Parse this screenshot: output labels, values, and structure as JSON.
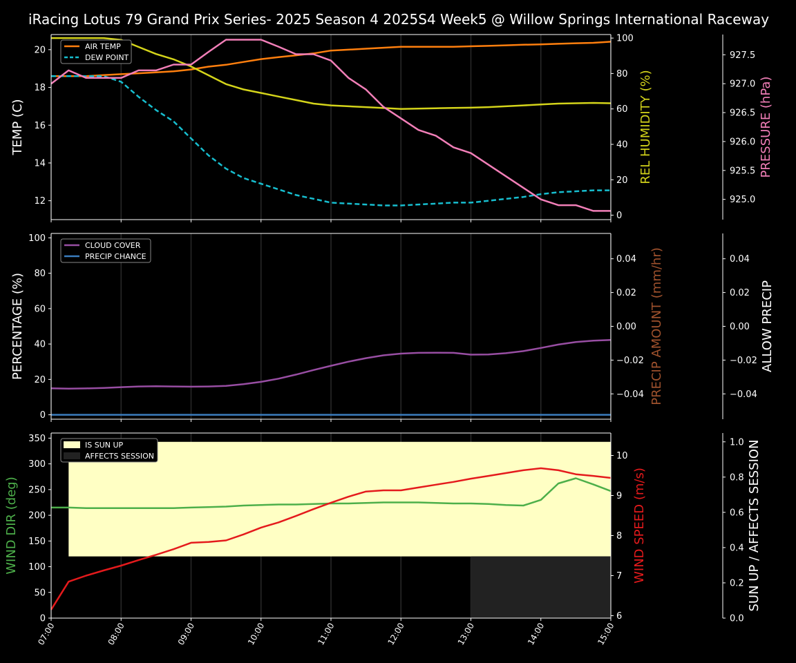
{
  "title": "iRacing Lotus 79 Grand Prix Series- 2025 Season 4 2025S4 Week5 @ Willow Springs International Raceway",
  "colors": {
    "background": "#000000",
    "axis": "#ffffff",
    "air_temp": "#ff7f0e",
    "dew_point": "#17becf",
    "humidity": "#d4d41a",
    "pressure": "#f27fb8",
    "cloud": "#984ea3",
    "precip": "#3b7dbf",
    "precip_amount_label": "#a0522d",
    "wind_dir": "#4daf4a",
    "wind_speed": "#e41a1c",
    "sun_up": "#ffffc4",
    "affects_session": "#222222",
    "grid": "#2a2a2a"
  },
  "x_ticks": [
    "07:00",
    "08:00",
    "09:00",
    "10:00",
    "11:00",
    "12:00",
    "13:00",
    "14:00",
    "15:00"
  ],
  "chart_data": [
    {
      "type": "line",
      "panel": "top",
      "x": [
        7,
        7.25,
        7.5,
        7.75,
        8,
        8.25,
        8.5,
        8.75,
        9,
        9.25,
        9.5,
        9.75,
        10,
        10.25,
        10.5,
        10.75,
        11,
        11.25,
        11.5,
        11.75,
        12,
        12.25,
        12.5,
        12.75,
        13,
        13.25,
        13.5,
        13.75,
        14,
        14.25,
        14.5,
        14.75,
        15
      ],
      "series": [
        {
          "name": "AIR TEMP",
          "axis": "left",
          "values": [
            18.6,
            18.6,
            18.6,
            18.65,
            18.7,
            18.75,
            18.8,
            18.85,
            18.95,
            19.1,
            19.2,
            19.35,
            19.5,
            19.6,
            19.7,
            19.8,
            19.95,
            20.0,
            20.05,
            20.1,
            20.15,
            20.15,
            20.15,
            20.15,
            20.18,
            20.2,
            20.23,
            20.26,
            20.28,
            20.31,
            20.34,
            20.36,
            20.42
          ]
        },
        {
          "name": "DEW POINT",
          "axis": "left",
          "dashed": true,
          "values": [
            18.6,
            18.6,
            18.6,
            18.6,
            18.3,
            17.5,
            16.8,
            16.2,
            15.3,
            14.4,
            13.7,
            13.2,
            12.9,
            12.6,
            12.3,
            12.1,
            11.9,
            11.85,
            11.8,
            11.75,
            11.75,
            11.8,
            11.85,
            11.9,
            11.9,
            12.0,
            12.1,
            12.2,
            12.35,
            12.45,
            12.5,
            12.55,
            12.55
          ]
        },
        {
          "name": "REL HUMIDITY",
          "axis": "right1",
          "values": [
            100,
            100,
            100,
            100,
            99,
            95,
            91,
            88,
            84,
            79,
            74,
            71,
            69,
            67,
            65,
            63,
            62,
            61.5,
            61,
            60.5,
            60,
            60.2,
            60.4,
            60.6,
            60.7,
            61,
            61.5,
            62,
            62.5,
            63,
            63.2,
            63.4,
            63.2
          ]
        },
        {
          "name": "PRESSURE",
          "axis": "right2",
          "values": [
            927.0,
            927.23,
            927.1,
            927.1,
            927.1,
            927.23,
            927.23,
            927.33,
            927.33,
            927.55,
            927.76,
            927.76,
            927.76,
            927.64,
            927.51,
            927.51,
            927.4,
            927.1,
            926.9,
            926.6,
            926.4,
            926.2,
            926.1,
            925.9,
            925.8,
            925.6,
            925.4,
            925.2,
            925.0,
            924.9,
            924.9,
            924.8,
            924.8
          ]
        }
      ],
      "ylabel_left": "TEMP (C)",
      "ylabel_right1": "REL HUMIDITY (%)",
      "ylabel_right2": "PRESSURE (hPa)",
      "ylim_left": [
        11.0,
        20.8
      ],
      "ylim_right1": [
        -2.5,
        102
      ],
      "ylim_right2": [
        924.65,
        927.85
      ],
      "yticks_left": [
        "12",
        "14",
        "16",
        "18",
        "20"
      ],
      "yticks_right1": [
        "0",
        "20",
        "40",
        "60",
        "80",
        "100"
      ],
      "yticks_right2": [
        "925.0",
        "925.5",
        "926.0",
        "926.5",
        "927.0",
        "927.5"
      ],
      "legend": [
        "AIR TEMP",
        "DEW POINT"
      ],
      "legend_position": "upper-left"
    },
    {
      "type": "line",
      "panel": "middle",
      "x": [
        7,
        7.25,
        7.5,
        7.75,
        8,
        8.25,
        8.5,
        8.75,
        9,
        9.25,
        9.5,
        9.75,
        10,
        10.25,
        10.5,
        10.75,
        11,
        11.25,
        11.5,
        11.75,
        12,
        12.25,
        12.5,
        12.75,
        13,
        13.25,
        13.5,
        13.75,
        14,
        14.25,
        14.5,
        14.75,
        15
      ],
      "series": [
        {
          "name": "CLOUD COVER",
          "axis": "left",
          "values": [
            15,
            14.8,
            14.9,
            15.2,
            15.6,
            16,
            16.1,
            16,
            15.9,
            16,
            16.3,
            17.3,
            18.6,
            20.4,
            22.7,
            25.3,
            27.7,
            30,
            32,
            33.6,
            34.6,
            35,
            35.1,
            35,
            34,
            34.1,
            34.8,
            36,
            37.8,
            39.7,
            41.1,
            41.9,
            42.3
          ]
        },
        {
          "name": "PRECIP CHANCE",
          "axis": "left",
          "values": [
            0,
            0,
            0,
            0,
            0,
            0,
            0,
            0,
            0,
            0,
            0,
            0,
            0,
            0,
            0,
            0,
            0,
            0,
            0,
            0,
            0,
            0,
            0,
            0,
            0,
            0,
            0,
            0,
            0,
            0,
            0,
            0,
            0
          ]
        }
      ],
      "ylabel_left": "PERCENTAGE (%)",
      "ylabel_right1": "PRECIP AMOUNT (mm/hr)",
      "ylabel_right2": "ALLOW PRECIP",
      "ylim_left": [
        -2.5,
        102.5
      ],
      "ylim_right1": [
        -0.055,
        0.055
      ],
      "ylim_right2": [
        -0.055,
        0.055
      ],
      "yticks_left": [
        "0",
        "20",
        "40",
        "60",
        "80",
        "100"
      ],
      "yticks_right1": [
        "−0.04",
        "−0.02",
        "0.00",
        "0.02",
        "0.04"
      ],
      "yticks_right2": [
        "−0.04",
        "−0.02",
        "0.00",
        "0.02",
        "0.04"
      ],
      "legend": [
        "CLOUD COVER",
        "PRECIP CHANCE"
      ],
      "legend_position": "upper-left"
    },
    {
      "type": "line",
      "panel": "bottom",
      "x": [
        7,
        7.25,
        7.5,
        7.75,
        8,
        8.25,
        8.5,
        8.75,
        9,
        9.25,
        9.5,
        9.75,
        10,
        10.25,
        10.5,
        10.75,
        11,
        11.25,
        11.5,
        11.75,
        12,
        12.25,
        12.5,
        12.75,
        13,
        13.25,
        13.5,
        13.75,
        14,
        14.25,
        14.5,
        14.75,
        15
      ],
      "series": [
        {
          "name": "WIND DIR",
          "axis": "left",
          "values": [
            215,
            215,
            214,
            214,
            214,
            214,
            214,
            214,
            215,
            216,
            217,
            219,
            220,
            221,
            221,
            222,
            223,
            223,
            224,
            225,
            225,
            225,
            224,
            223,
            223,
            222,
            220,
            219,
            230,
            262,
            272,
            260,
            247
          ]
        },
        {
          "name": "WIND SPEED",
          "axis": "right1",
          "values": [
            6.15,
            6.85,
            7.0,
            7.13,
            7.25,
            7.39,
            7.52,
            7.66,
            7.82,
            7.84,
            7.88,
            8.03,
            8.2,
            8.33,
            8.49,
            8.66,
            8.82,
            8.97,
            9.1,
            9.13,
            9.13,
            9.2,
            9.27,
            9.34,
            9.42,
            9.49,
            9.56,
            9.63,
            9.68,
            9.63,
            9.53,
            9.49,
            9.44
          ]
        }
      ],
      "sun_up": {
        "start": 7.25,
        "end": 15,
        "value": 1,
        "bottom": 0.35
      },
      "affects_session": {
        "start": 13,
        "end": 15,
        "value": 0.35
      },
      "ylabel_left": "WIND DIR (deg)",
      "ylabel_right1": "WIND SPEED (m/s)",
      "ylabel_right2": "SUN UP / AFFECTS SESSION",
      "ylim_left": [
        0,
        360
      ],
      "ylim_right1": [
        5.94,
        10.56
      ],
      "ylim_right2": [
        0,
        1.05
      ],
      "yticks_left": [
        "0",
        "50",
        "100",
        "150",
        "200",
        "250",
        "300",
        "350"
      ],
      "yticks_right1": [
        "6",
        "7",
        "8",
        "9",
        "10"
      ],
      "yticks_right2": [
        "0.0",
        "0.2",
        "0.4",
        "0.6",
        "0.8",
        "1.0"
      ],
      "legend": [
        "IS SUN UP",
        "AFFECTS SESSION"
      ],
      "legend_position": "upper-left"
    }
  ]
}
